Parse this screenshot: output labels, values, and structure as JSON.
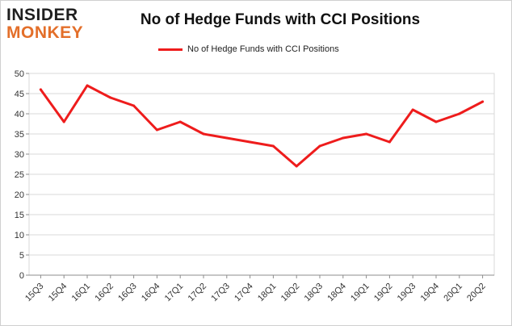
{
  "logo": {
    "line1": "INSIDER",
    "line2": "MONKEY"
  },
  "colors": {
    "line": "#ee1c1c",
    "grid": "#d9d9d9",
    "axis": "#8c8c8c",
    "brand_orange": "#e36f2a"
  },
  "chart_data": {
    "type": "line",
    "title": "No of Hedge Funds with CCI Positions",
    "xlabel": "",
    "ylabel": "",
    "ylim": [
      0,
      50
    ],
    "yticks": [
      0,
      5,
      10,
      15,
      20,
      25,
      30,
      35,
      40,
      45,
      50
    ],
    "grid": true,
    "legend_position": "top-center",
    "categories": [
      "15Q3",
      "15Q4",
      "16Q1",
      "16Q2",
      "16Q3",
      "16Q4",
      "17Q1",
      "17Q2",
      "17Q3",
      "17Q4",
      "18Q1",
      "18Q2",
      "18Q3",
      "18Q4",
      "19Q1",
      "19Q2",
      "19Q3",
      "19Q4",
      "20Q1",
      "20Q2"
    ],
    "series": [
      {
        "name": "No of Hedge Funds with CCI Positions",
        "values": [
          46,
          38,
          47,
          44,
          42,
          36,
          38,
          35,
          34,
          33,
          32,
          27,
          32,
          34,
          35,
          33,
          41,
          38,
          40,
          43
        ]
      }
    ]
  }
}
